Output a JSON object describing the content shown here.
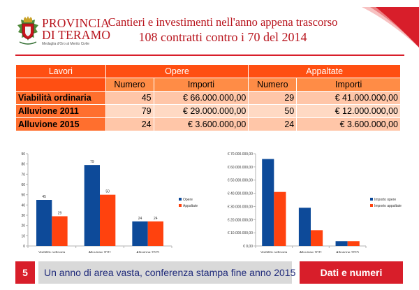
{
  "logo": {
    "line1": "PROVINCIA",
    "line2": "DI TERAMO",
    "motto": "Medaglia d'Oro al Merito Civile"
  },
  "header": {
    "title": "Cantieri e investimenti nell'anno appena trascorso",
    "subtitle": "108 contratti contro i 70 del 2014"
  },
  "table": {
    "col_lavori": "Lavori",
    "col_opere": "Opere",
    "col_appaltate": "Appaltate",
    "sub_numero": "Numero",
    "sub_importi": "Importi",
    "rows": [
      {
        "label": "Viabilità ordinaria",
        "opere_num": "45",
        "opere_imp": "€ 66.000.000,00",
        "app_num": "29",
        "app_imp": "€ 41.000.000,00"
      },
      {
        "label": "Alluvione 2011",
        "opere_num": "79",
        "opere_imp": "€ 29.000.000,00",
        "app_num": "50",
        "app_imp": "€ 12.000.000,00"
      },
      {
        "label": "Alluvione 2015",
        "opere_num": "24",
        "opere_imp": "€ 3.600.000,00",
        "app_num": "24",
        "app_imp": "€ 3.600.000,00"
      }
    ]
  },
  "colors": {
    "series1": "#0d4a99",
    "series2": "#ff420e"
  },
  "chart_data": [
    {
      "type": "bar",
      "categories": [
        "Viabilità ordinaria",
        "Alluvione 2011",
        "Alluvione 2015"
      ],
      "series": [
        {
          "name": "Opere",
          "values": [
            45,
            79,
            24
          ]
        },
        {
          "name": "Appaltate",
          "values": [
            29,
            50,
            24
          ]
        }
      ],
      "ylim": [
        0,
        90
      ],
      "yticks": [
        "0",
        "10",
        "20",
        "30",
        "40",
        "50",
        "60",
        "70",
        "80",
        "90"
      ],
      "data_labels": true,
      "grid": false,
      "legend": "right"
    },
    {
      "type": "bar",
      "categories": [
        "Viabilità ordinaria",
        "Alluvione 2011",
        "Alluvione 2015"
      ],
      "series": [
        {
          "name": "Importo opere",
          "values": [
            66000000,
            29000000,
            3600000
          ]
        },
        {
          "name": "Importo appaltate",
          "values": [
            41000000,
            12000000,
            3600000
          ]
        }
      ],
      "ylim": [
        0,
        70000000
      ],
      "yticks": [
        "€ 0,00",
        "€ 10.000.000,00",
        "€ 20.000.000,00",
        "€ 30.000.000,00",
        "€ 40.000.000,00",
        "€ 50.000.000,00",
        "€ 60.000.000,00",
        "€ 70.000.000,00"
      ],
      "data_labels": false,
      "grid": false,
      "legend": "right"
    }
  ],
  "footer": {
    "page": "5",
    "text": "Un anno di area vasta, conferenza stampa fine anno 2015",
    "section": "Dati e numeri"
  }
}
